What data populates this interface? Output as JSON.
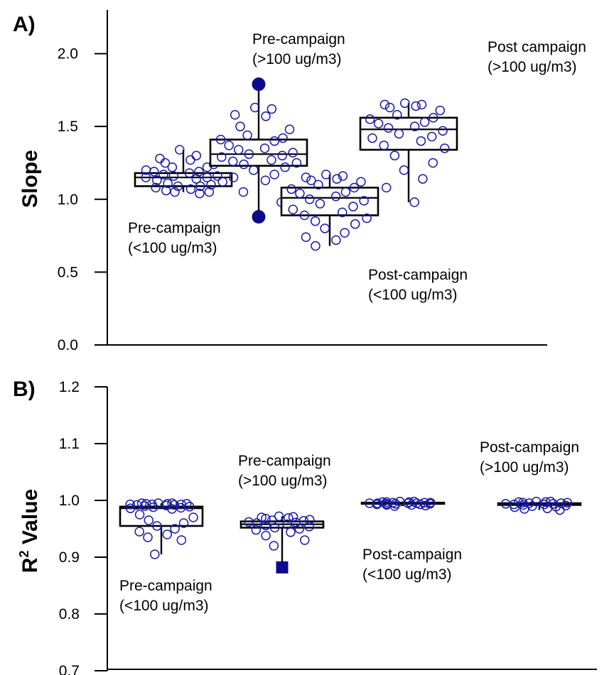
{
  "colors": {
    "marker": "#1a1aa6",
    "outlier": "#0b0b8c",
    "box": "#000000"
  },
  "chart_data": [
    {
      "type": "box",
      "panel": "A)",
      "title": "",
      "xlabel": "",
      "ylabel": "Slope",
      "ylim": [
        0.0,
        2.3
      ],
      "yticks": [
        "0.0",
        "0.5",
        "1.0",
        "1.5",
        "2.0"
      ],
      "grid": false,
      "groups": [
        {
          "label": [
            "Pre-campaign",
            "(<100 ug/m3)"
          ],
          "q1": 1.09,
          "median": 1.15,
          "q3": 1.18,
          "whisker_low": 1.05,
          "whisker_high": 1.34,
          "outliers": [],
          "points": [
            1.34,
            1.3,
            1.28,
            1.27,
            1.25,
            1.24,
            1.22,
            1.22,
            1.2,
            1.19,
            1.19,
            1.18,
            1.17,
            1.16,
            1.16,
            1.15,
            1.15,
            1.14,
            1.13,
            1.12,
            1.11,
            1.1,
            1.09,
            1.09,
            1.08,
            1.07,
            1.06,
            1.05,
            1.05,
            1.04
          ]
        },
        {
          "label": [
            "Pre-campaign",
            "(>100 ug/m3)"
          ],
          "q1": 1.23,
          "median": 1.31,
          "q3": 1.41,
          "whisker_low": 0.88,
          "whisker_high": 1.79,
          "outliers": [
            1.79,
            0.88
          ],
          "points": [
            1.63,
            1.62,
            1.58,
            1.57,
            1.5,
            1.48,
            1.44,
            1.42,
            1.41,
            1.4,
            1.37,
            1.35,
            1.34,
            1.32,
            1.31,
            1.3,
            1.29,
            1.27,
            1.26,
            1.25,
            1.24,
            1.22,
            1.2,
            1.17,
            1.15,
            1.13,
            1.05,
            0.98
          ]
        },
        {
          "label": [
            "Post-campaign",
            "(<100 ug/m3)"
          ],
          "q1": 0.89,
          "median": 1.01,
          "q3": 1.08,
          "whisker_low": 0.68,
          "whisker_high": 1.17,
          "outliers": [],
          "points": [
            1.17,
            1.16,
            1.15,
            1.14,
            1.13,
            1.12,
            1.1,
            1.08,
            1.07,
            1.05,
            1.04,
            1.02,
            1.0,
            0.99,
            0.97,
            0.95,
            0.93,
            0.91,
            0.89,
            0.87,
            0.85,
            0.83,
            0.8,
            0.77,
            0.74,
            0.72,
            0.68
          ]
        },
        {
          "label": [
            "Post campaign",
            "(>100 ug/m3)"
          ],
          "q1": 1.34,
          "median": 1.48,
          "q3": 1.56,
          "whisker_low": 0.98,
          "whisker_high": 1.66,
          "outliers": [],
          "points": [
            1.66,
            1.65,
            1.65,
            1.64,
            1.63,
            1.61,
            1.58,
            1.56,
            1.55,
            1.53,
            1.52,
            1.5,
            1.49,
            1.47,
            1.45,
            1.43,
            1.42,
            1.4,
            1.37,
            1.35,
            1.3,
            1.25,
            1.2,
            1.14,
            1.08,
            0.98
          ]
        }
      ]
    },
    {
      "type": "box",
      "panel": "B)",
      "title": "",
      "xlabel": "",
      "ylabel": "R",
      "ylabel_sup": "2",
      "ylabel_rest": " Value",
      "ylim": [
        0.7,
        1.2
      ],
      "yticks": [
        "0.7",
        "0.8",
        "0.9",
        "1.0",
        "1.1",
        "1.2"
      ],
      "grid": false,
      "groups": [
        {
          "label": [
            "Pre-campaign",
            "(<100 ug/m3)"
          ],
          "q1": 0.955,
          "median": 0.986,
          "q3": 0.989,
          "whisker_low": 0.905,
          "whisker_high": 0.995,
          "outliers": [],
          "points": [
            0.995,
            0.995,
            0.995,
            0.994,
            0.994,
            0.994,
            0.993,
            0.993,
            0.993,
            0.992,
            0.992,
            0.991,
            0.99,
            0.989,
            0.988,
            0.987,
            0.986,
            0.985,
            0.975,
            0.97,
            0.965,
            0.96,
            0.955,
            0.95,
            0.945,
            0.94,
            0.935,
            0.93,
            0.905
          ]
        },
        {
          "label": [
            "Pre-campaign",
            "(>100 ug/m3)"
          ],
          "q1": 0.952,
          "median": 0.958,
          "q3": 0.963,
          "whisker_low": 0.882,
          "whisker_high": 0.972,
          "outliers": [
            0.882
          ],
          "points": [
            0.972,
            0.971,
            0.97,
            0.969,
            0.968,
            0.966,
            0.965,
            0.964,
            0.962,
            0.961,
            0.96,
            0.958,
            0.956,
            0.954,
            0.952,
            0.95,
            0.948,
            0.944,
            0.938,
            0.93,
            0.92
          ]
        },
        {
          "label": [
            "Post-campaign",
            "(<100 ug/m3)"
          ],
          "q1": 0.994,
          "median": 0.995,
          "q3": 0.996,
          "whisker_low": 0.99,
          "whisker_high": 0.998,
          "outliers": [],
          "points": [
            0.998,
            0.998,
            0.997,
            0.997,
            0.997,
            0.996,
            0.996,
            0.996,
            0.995,
            0.995,
            0.995,
            0.995,
            0.994,
            0.994,
            0.994,
            0.993,
            0.993,
            0.992,
            0.992,
            0.991,
            0.99
          ]
        },
        {
          "label": [
            "Post-campaign",
            "(>100 ug/m3)"
          ],
          "q1": 0.992,
          "median": 0.993,
          "q3": 0.995,
          "whisker_low": 0.983,
          "whisker_high": 0.998,
          "outliers": [],
          "points": [
            0.998,
            0.998,
            0.997,
            0.997,
            0.996,
            0.996,
            0.995,
            0.995,
            0.994,
            0.994,
            0.993,
            0.993,
            0.992,
            0.991,
            0.99,
            0.989,
            0.988,
            0.986,
            0.985,
            0.983
          ]
        }
      ]
    }
  ]
}
